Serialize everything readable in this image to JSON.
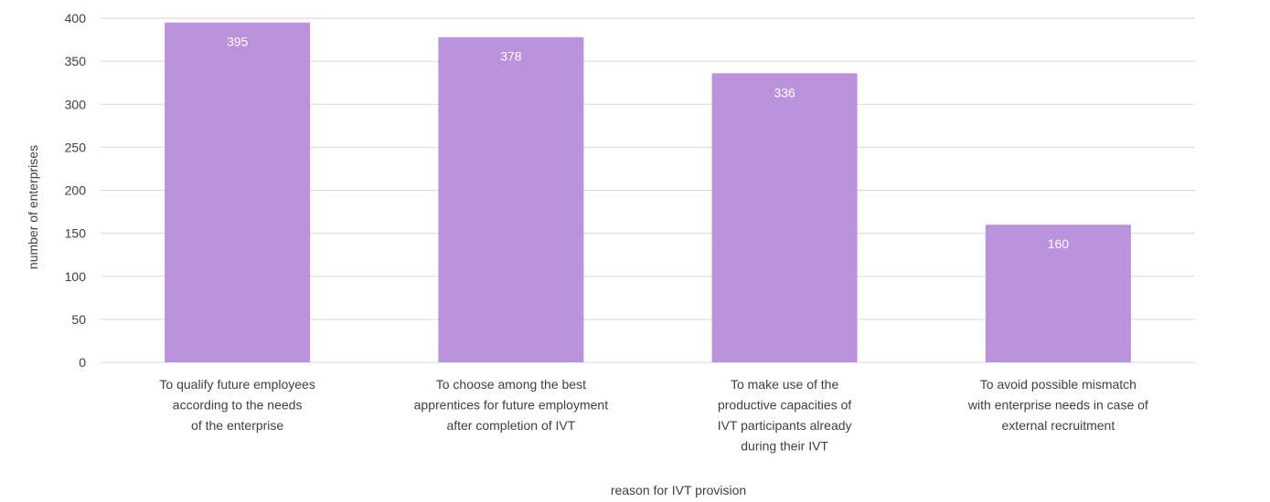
{
  "chart_data": {
    "type": "bar",
    "categories": [
      "To qualify future employees according to the needs of the enterprise",
      "To choose among the best apprentices for future employment after completion of IVT",
      "To make use of the productive capacities of IVT participants already during their IVT",
      "To avoid possible mismatch with enterprise needs in case of external recruitment"
    ],
    "category_lines": [
      [
        "To qualify future employees",
        "according to the needs",
        "of the enterprise"
      ],
      [
        "To choose among the best",
        "apprentices for future employment",
        "after completion of IVT"
      ],
      [
        "To make use of the",
        "productive capacities of",
        "IVT participants already",
        "during their IVT"
      ],
      [
        "To avoid possible mismatch",
        "with enterprise needs in case of",
        "external recruitment"
      ]
    ],
    "values": [
      395,
      378,
      336,
      160
    ],
    "data_labels": [
      "395",
      "378",
      "336",
      "160"
    ],
    "title": "",
    "xlabel": "reason for IVT provision",
    "ylabel": "number of enterprises",
    "ylim": [
      0,
      400
    ],
    "yticks": [
      0,
      50,
      100,
      150,
      200,
      250,
      300,
      350,
      400
    ],
    "grid": true,
    "bar_color": "#bb93dc",
    "grid_color": "#d9d9d9",
    "baseline_color": "#c9dcef",
    "text_color": "#404040",
    "data_label_color": "#ffffff"
  }
}
